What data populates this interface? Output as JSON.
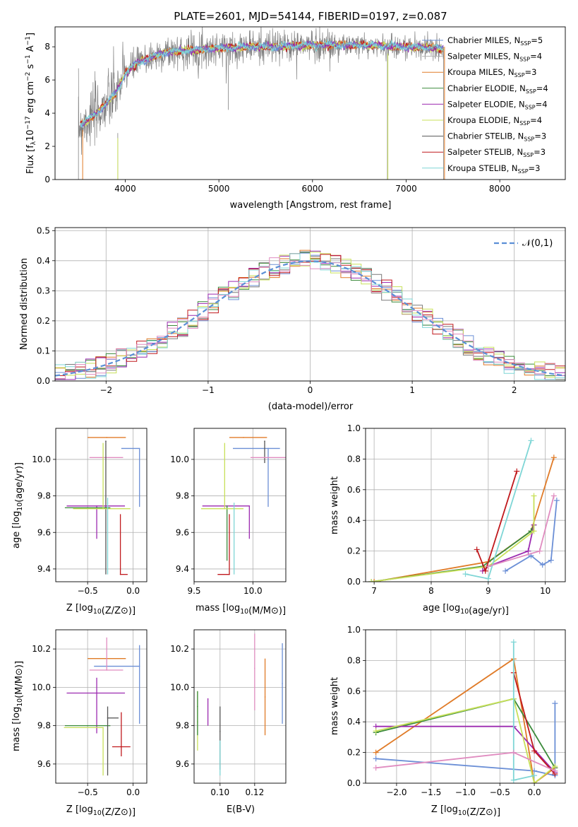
{
  "colors": {
    "grid": "#b0b0b0",
    "gaussian": "#5b8fd6",
    "model_palette": [
      "#6b8fd6",
      "#e07b28",
      "#3a8a3a",
      "#7a7a7a",
      "#9c2ab0",
      "#c8e05a",
      "#222222",
      "#c0191d",
      "#7fd6d6",
      "#e08cc0"
    ]
  },
  "chart_data": [
    {
      "id": "spectrum",
      "type": "line",
      "title": "PLATE=2601, MJD=54144, FIBERID=0197, z=0.087",
      "xlabel": "wavelength [Angstrom, rest frame]",
      "ylabel_parts": [
        "Flux [f",
        "λ",
        "10",
        "−17",
        " erg cm",
        "−2",
        " s",
        "−1",
        " A",
        "−1",
        "]"
      ],
      "xlim": [
        3250,
        8700
      ],
      "ylim": [
        0,
        9.2
      ],
      "xticks": [
        4000,
        5000,
        6000,
        7000,
        8000
      ],
      "yticks": [
        0,
        2,
        4,
        6,
        8
      ],
      "grid": false,
      "legend_position": "upper-right",
      "legend": [
        {
          "label": "Chabrier MILES, N",
          "sub": "SSP",
          "rest": "=5",
          "color": "#6b8fd6"
        },
        {
          "label": "Salpeter MILES, N",
          "sub": "SSP",
          "rest": "=4",
          "color": "#b0b0b0"
        },
        {
          "label": "Kroupa MILES, N",
          "sub": "SSP",
          "rest": "=3",
          "color": "#e07b28"
        },
        {
          "label": "Chabrier ELODIE, N",
          "sub": "SSP",
          "rest": "=4",
          "color": "#3a8a3a"
        },
        {
          "label": "Salpeter ELODIE, N",
          "sub": "SSP",
          "rest": "=4",
          "color": "#9c2ab0"
        },
        {
          "label": "Kroupa ELODIE, N",
          "sub": "SSP",
          "rest": "=4",
          "color": "#c8e05a"
        },
        {
          "label": "Chabrier STELIB, N",
          "sub": "SSP",
          "rest": "=3",
          "color": "#555555"
        },
        {
          "label": "Salpeter STELIB, N",
          "sub": "SSP",
          "rest": "=3",
          "color": "#c0191d"
        },
        {
          "label": "Kroupa STELIB, N",
          "sub": "SSP",
          "rest": "=3",
          "color": "#7fd6d6"
        }
      ],
      "continuum": {
        "wavelength": [
          3500,
          3600,
          3700,
          3800,
          3900,
          4000,
          4100,
          4200,
          4300,
          4400,
          4500,
          4700,
          5000,
          5300,
          5600,
          6000,
          6500,
          7000,
          7400
        ],
        "flux": [
          3.2,
          3.6,
          4.0,
          4.6,
          5.2,
          6.4,
          6.9,
          7.2,
          7.4,
          7.6,
          7.7,
          7.8,
          7.9,
          8.0,
          8.0,
          8.1,
          8.1,
          8.0,
          7.9
        ]
      }
    },
    {
      "id": "residuals",
      "type": "step",
      "xlabel": "(data-model)/error",
      "ylabel": "Normed distribution",
      "xlim": [
        -2.5,
        2.5
      ],
      "ylim": [
        0,
        0.51
      ],
      "xticks": [
        -2,
        -1,
        0,
        1,
        2
      ],
      "xticklabels": [
        "−2",
        "−1",
        "0",
        "1",
        "2"
      ],
      "yticks": [
        0.0,
        0.1,
        0.2,
        0.3,
        0.4,
        0.5
      ],
      "yticklabels": [
        "0.0",
        "0.1",
        "0.2",
        "0.3",
        "0.4",
        "0.5"
      ],
      "grid": true,
      "legend_position": "upper-right",
      "legend": "𝒩(0,1)",
      "bin_width": 0.1
    },
    {
      "id": "age_vs_Z",
      "type": "errorbar",
      "xlabel": "Z [log10(Z/Z⊙)]",
      "ylabel": "age  [log10(age/yr)]",
      "xlim": [
        -0.85,
        0.15
      ],
      "ylim": [
        9.33,
        10.17
      ],
      "xticks": [
        -0.5,
        0.0
      ],
      "xticklabels": [
        "−0.5",
        "0.0"
      ],
      "yticks": [
        9.4,
        9.6,
        9.8,
        10.0
      ],
      "yticklabels": [
        "9.4",
        "9.6",
        "9.8",
        "10.0"
      ],
      "grid": true,
      "points": [
        {
          "x": 0.07,
          "y": 10.06,
          "xe": [
            0.2,
            0.0
          ],
          "ye": [
            0.32,
            0.0
          ],
          "color": "#6b8fd6"
        },
        {
          "x": -0.29,
          "y": 10.12,
          "xe": [
            0.21,
            0.21
          ],
          "ye": [
            0.0,
            0.0
          ],
          "color": "#e07b28"
        },
        {
          "x": -0.29,
          "y": 10.01,
          "xe": [
            0.19,
            0.18
          ],
          "ye": [
            0.0,
            0.0
          ],
          "color": "#e08cc0"
        },
        {
          "x": -0.3,
          "y": 10.1,
          "xe": [
            0.0,
            0.0
          ],
          "ye": [
            0.73,
            0.0
          ],
          "color": "#555555"
        },
        {
          "x": -0.4,
          "y": 9.745,
          "xe": [
            0.33,
            0.31
          ],
          "ye": [
            0.18,
            0.0
          ],
          "color": "#9c2ab0"
        },
        {
          "x": -0.5,
          "y": 9.735,
          "xe": [
            0.25,
            0.25
          ],
          "ye": [
            0.0,
            0.0
          ],
          "color": "#3a8a3a"
        },
        {
          "x": -0.33,
          "y": 9.73,
          "xe": [
            0.33,
            0.3
          ],
          "ye": [
            0.0,
            0.36
          ],
          "color": "#c8e05a"
        },
        {
          "x": -0.28,
          "y": 9.76,
          "xe": [
            0.0,
            0.0
          ],
          "ye": [
            0.39,
            0.03
          ],
          "color": "#7fd6d6"
        },
        {
          "x": -0.14,
          "y": 9.37,
          "xe": [
            0.0,
            0.08
          ],
          "ye": [
            0.0,
            0.33
          ],
          "color": "#c0191d"
        }
      ]
    },
    {
      "id": "age_vs_mass",
      "type": "errorbar",
      "xlabel": "mass [log10(M/M⊙)]",
      "ylabel": "",
      "xlim": [
        9.5,
        10.28
      ],
      "ylim": [
        9.33,
        10.17
      ],
      "xticks": [
        9.5,
        10.0
      ],
      "xticklabels": [
        "9.5",
        "10.0"
      ],
      "yticks": [
        9.4,
        9.6,
        9.8,
        10.0
      ],
      "yticklabels": [
        "9.4",
        "9.6",
        "9.8",
        "10.0"
      ],
      "grid": true,
      "points": [
        {
          "x": 10.13,
          "y": 10.06,
          "xe": [
            0.3,
            0.1
          ],
          "ye": [
            0.32,
            0.0
          ],
          "color": "#6b8fd6"
        },
        {
          "x": 10.1,
          "y": 10.1,
          "xe": [
            0.0,
            0.0
          ],
          "ye": [
            0.12,
            0.0
          ],
          "color": "#555555"
        },
        {
          "x": 9.92,
          "y": 10.12,
          "xe": [
            0.12,
            0.2
          ],
          "ye": [
            0.0,
            0.0
          ],
          "color": "#e07b28"
        },
        {
          "x": 10.1,
          "y": 10.01,
          "xe": [
            0.12,
            0.18
          ],
          "ye": [
            0.0,
            0.0
          ],
          "color": "#e08cc0"
        },
        {
          "x": 9.97,
          "y": 9.745,
          "xe": [
            0.4,
            0.0
          ],
          "ye": [
            0.18,
            0.0
          ],
          "color": "#9c2ab0"
        },
        {
          "x": 9.78,
          "y": 9.745,
          "xe": [
            0.0,
            0.0
          ],
          "ye": [
            0.3,
            0.0
          ],
          "color": "#3a8a3a"
        },
        {
          "x": 9.76,
          "y": 9.73,
          "xe": [
            0.2,
            0.16
          ],
          "ye": [
            0.0,
            0.36
          ],
          "color": "#c8e05a"
        },
        {
          "x": 9.84,
          "y": 9.76,
          "xe": [
            0.0,
            0.0
          ],
          "ye": [
            0.39,
            0.0
          ],
          "color": "#7fd6d6"
        },
        {
          "x": 9.8,
          "y": 9.37,
          "xe": [
            0.1,
            0.0
          ],
          "ye": [
            0.0,
            0.33
          ],
          "color": "#c0191d"
        }
      ]
    },
    {
      "id": "weight_vs_age",
      "type": "line",
      "xlabel": "age  [log10(age/yr)]",
      "ylabel": "mass weight",
      "xlim": [
        6.85,
        10.35
      ],
      "ylim": [
        0,
        1.0
      ],
      "xticks": [
        7,
        8,
        9,
        10
      ],
      "xticklabels": [
        "7",
        "8",
        "9",
        "10"
      ],
      "yticks": [
        0.0,
        0.2,
        0.4,
        0.6,
        0.8,
        1.0
      ],
      "yticklabels": [
        "0.0",
        "0.2",
        "0.4",
        "0.6",
        "0.8",
        "1.0"
      ],
      "grid": true,
      "series": [
        {
          "color": "#6b8fd6",
          "x": [
            9.3,
            9.75,
            9.95,
            10.1,
            10.2
          ],
          "y": [
            0.07,
            0.17,
            0.11,
            0.14,
            0.53
          ]
        },
        {
          "color": "#e07b28",
          "x": [
            7.0,
            9.0,
            9.75,
            10.15
          ],
          "y": [
            0.0,
            0.13,
            0.33,
            0.81
          ]
        },
        {
          "color": "#3a8a3a",
          "x": [
            6.95,
            8.9,
            9.75,
            9.8
          ],
          "y": [
            0.0,
            0.1,
            0.33,
            0.37
          ]
        },
        {
          "color": "#9c2ab0",
          "x": [
            8.9,
            9.0,
            9.7,
            9.8
          ],
          "y": [
            0.07,
            0.1,
            0.2,
            0.37
          ]
        },
        {
          "color": "#c8e05a",
          "x": [
            6.95,
            9.0,
            9.8,
            9.8
          ],
          "y": [
            0.0,
            0.1,
            0.33,
            0.56
          ]
        },
        {
          "color": "#c0191d",
          "x": [
            8.8,
            8.95,
            9.5
          ],
          "y": [
            0.21,
            0.07,
            0.72
          ]
        },
        {
          "color": "#7fd6d6",
          "x": [
            8.6,
            9.0,
            9.75
          ],
          "y": [
            0.05,
            0.02,
            0.92
          ]
        },
        {
          "color": "#e08cc0",
          "x": [
            9.0,
            9.9,
            10.15
          ],
          "y": [
            0.1,
            0.2,
            0.56
          ]
        }
      ]
    },
    {
      "id": "mass_vs_Z",
      "type": "errorbar",
      "xlabel": "Z [log10(Z/Z⊙)]",
      "ylabel": "mass [log10(M/M⊙)]",
      "xlim": [
        -0.85,
        0.15
      ],
      "ylim": [
        9.5,
        10.3
      ],
      "xticks": [
        -0.5,
        0.0
      ],
      "xticklabels": [
        "−0.5",
        "0.0"
      ],
      "yticks": [
        9.6,
        9.8,
        10.0,
        10.2
      ],
      "yticklabels": [
        "9.6",
        "9.8",
        "10.0",
        "10.2"
      ],
      "grid": true,
      "points": [
        {
          "x": 0.07,
          "y": 10.11,
          "xe": [
            0.5,
            0.0
          ],
          "ye": [
            0.3,
            0.11
          ],
          "color": "#6b8fd6"
        },
        {
          "x": -0.29,
          "y": 10.15,
          "xe": [
            0.21,
            0.21
          ],
          "ye": [
            0.0,
            0.0
          ],
          "color": "#e07b28"
        },
        {
          "x": -0.29,
          "y": 10.09,
          "xe": [
            0.19,
            0.18
          ],
          "ye": [
            0.0,
            0.17
          ],
          "color": "#e08cc0"
        },
        {
          "x": -0.4,
          "y": 9.97,
          "xe": [
            0.33,
            0.31
          ],
          "ye": [
            0.21,
            0.08
          ],
          "color": "#9c2ab0"
        },
        {
          "x": -0.5,
          "y": 9.8,
          "xe": [
            0.25,
            0.25
          ],
          "ye": [
            0.0,
            0.0
          ],
          "color": "#3a8a3a"
        },
        {
          "x": -0.33,
          "y": 9.79,
          "xe": [
            0.43,
            0.0
          ],
          "ye": [
            0.25,
            0.0
          ],
          "color": "#c8e05a"
        },
        {
          "x": -0.28,
          "y": 9.84,
          "xe": [
            0.0,
            0.12
          ],
          "ye": [
            0.3,
            0.06
          ],
          "color": "#555555"
        },
        {
          "x": -0.13,
          "y": 9.69,
          "xe": [
            0.1,
            0.1
          ],
          "ye": [
            0.05,
            0.18
          ],
          "color": "#c0191d"
        }
      ]
    },
    {
      "id": "mass_vs_ebv",
      "type": "errorbar",
      "xlabel": "E(B-V)",
      "ylabel": "",
      "xlim": [
        0.085,
        0.138
      ],
      "ylim": [
        9.5,
        10.3
      ],
      "xticks": [
        0.1,
        0.12
      ],
      "xticklabels": [
        "0.10",
        "0.12"
      ],
      "yticks": [
        9.6,
        9.8,
        10.0,
        10.2
      ],
      "yticklabels": [
        "9.6",
        "9.8",
        "10.0",
        "10.2"
      ],
      "grid": true,
      "points": [
        {
          "x": 0.087,
          "y": 9.82,
          "ye": [
            0.15,
            0.16
          ],
          "color": "#c8e05a"
        },
        {
          "x": 0.087,
          "y": 9.9,
          "ye": [
            0.15,
            0.08
          ],
          "color": "#3a8a3a"
        },
        {
          "x": 0.093,
          "y": 9.94,
          "ye": [
            0.14,
            0.0
          ],
          "color": "#9c2ab0"
        },
        {
          "x": 0.1,
          "y": 9.77,
          "ye": [
            0.2,
            0.13
          ],
          "color": "#555555"
        },
        {
          "x": 0.1,
          "y": 9.72,
          "ye": [
            0.18,
            0.0
          ],
          "color": "#7fd6d6"
        },
        {
          "x": 0.12,
          "y": 10.1,
          "ye": [
            0.22,
            0.18
          ],
          "color": "#e08cc0"
        },
        {
          "x": 0.126,
          "y": 9.95,
          "ye": [
            0.2,
            0.2
          ],
          "color": "#e07b28"
        },
        {
          "x": 0.136,
          "y": 10.02,
          "ye": [
            0.21,
            0.21
          ],
          "color": "#6b8fd6"
        }
      ]
    },
    {
      "id": "weight_vs_Z",
      "type": "line",
      "xlabel": "Z [log10(Z/Z⊙)]",
      "ylabel": "mass weight",
      "xlim": [
        -2.45,
        0.45
      ],
      "ylim": [
        0,
        1.0
      ],
      "xticks": [
        -2.0,
        -1.5,
        -1.0,
        -0.5,
        0.0
      ],
      "xticklabels": [
        "−2.0",
        "−1.5",
        "−1.0",
        "−0.5",
        "0.0"
      ],
      "yticks": [
        0.0,
        0.2,
        0.4,
        0.6,
        0.8,
        1.0
      ],
      "yticklabels": [
        "0.0",
        "0.2",
        "0.4",
        "0.6",
        "0.8",
        "1.0"
      ],
      "grid": true,
      "series": [
        {
          "color": "#6b8fd6",
          "x": [
            -2.3,
            0.0,
            0.3,
            0.3
          ],
          "y": [
            0.16,
            0.08,
            0.05,
            0.52
          ]
        },
        {
          "color": "#e07b28",
          "x": [
            -2.3,
            -0.3,
            0.0,
            0.3
          ],
          "y": [
            0.2,
            0.81,
            0.0,
            0.1
          ]
        },
        {
          "color": "#3a8a3a",
          "x": [
            -2.3,
            -0.3,
            0.3
          ],
          "y": [
            0.33,
            0.55,
            0.1
          ]
        },
        {
          "color": "#9c2ab0",
          "x": [
            -2.3,
            -0.3,
            0.3
          ],
          "y": [
            0.37,
            0.37,
            0.07
          ]
        },
        {
          "color": "#c8e05a",
          "x": [
            -2.3,
            -0.3,
            0.0,
            0.3
          ],
          "y": [
            0.34,
            0.55,
            0.0,
            0.11
          ]
        },
        {
          "color": "#c0191d",
          "x": [
            -0.3,
            0.0,
            0.3
          ],
          "y": [
            0.72,
            0.21,
            0.06
          ]
        },
        {
          "color": "#7fd6d6",
          "x": [
            -0.3,
            -0.3,
            0.0
          ],
          "y": [
            0.92,
            0.02,
            0.05
          ]
        },
        {
          "color": "#e08cc0",
          "x": [
            -2.3,
            -0.3,
            0.3
          ],
          "y": [
            0.1,
            0.2,
            0.08
          ]
        }
      ]
    }
  ]
}
